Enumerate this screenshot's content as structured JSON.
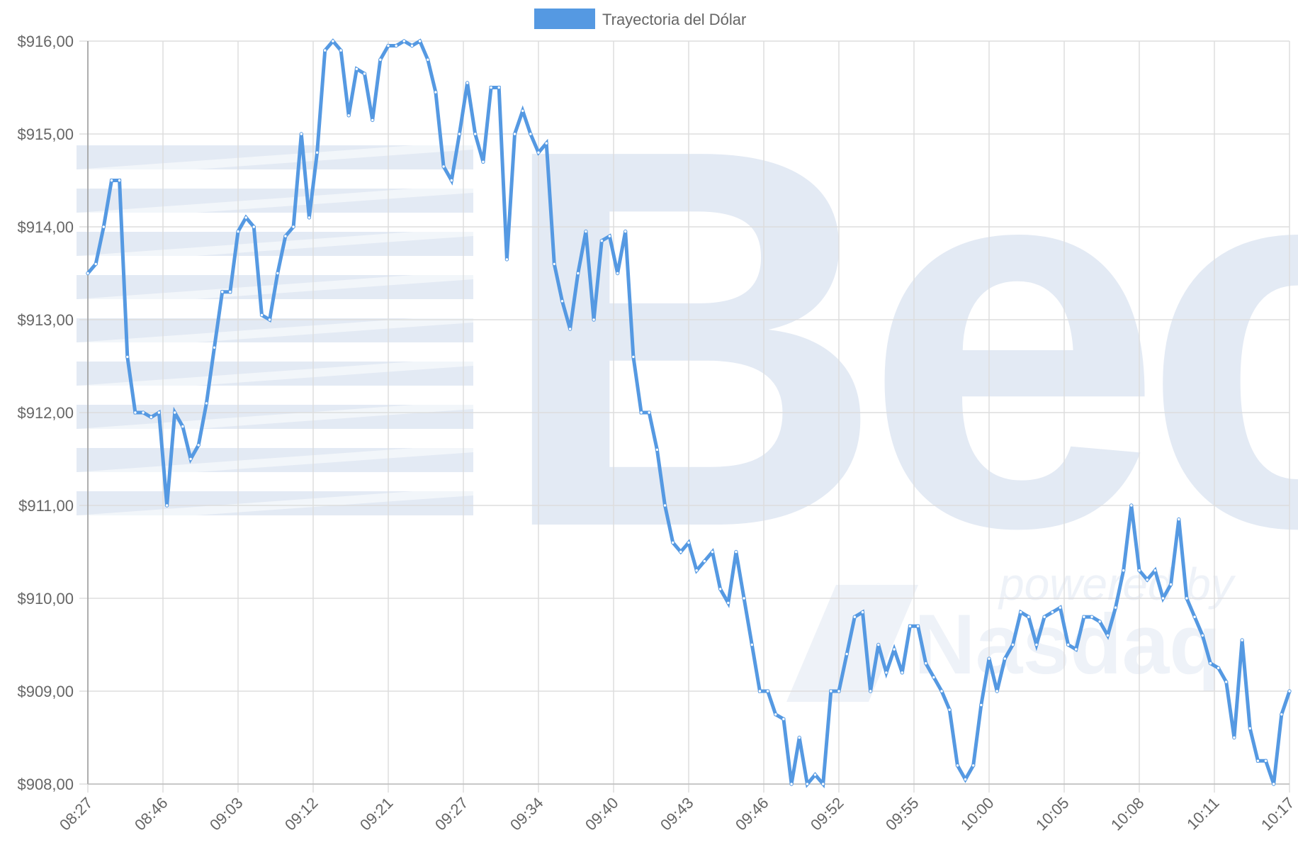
{
  "legend": {
    "label": "Trayectoria del Dólar",
    "color": "#5599e2"
  },
  "watermark": {
    "brand": "Bec",
    "tagline": "powered by",
    "partner": "Nasdaq",
    "color": "#e3eaf4"
  },
  "chart_data": {
    "type": "line",
    "title": "",
    "xlabel": "",
    "ylabel": "",
    "ylim": [
      908,
      916
    ],
    "y_ticks": [
      "$908,00",
      "$909,00",
      "$910,00",
      "$911,00",
      "$912,00",
      "$913,00",
      "$914,00",
      "$915,00",
      "$916,00"
    ],
    "x_tick_labels": [
      "08:27",
      "08:46",
      "09:03",
      "09:12",
      "09:21",
      "09:27",
      "09:34",
      "09:40",
      "09:43",
      "09:46",
      "09:52",
      "09:55",
      "10:00",
      "10:05",
      "10:08",
      "10:11",
      "10:17"
    ],
    "grid": true,
    "legend_position": "top-center",
    "series": [
      {
        "name": "Trayectoria del Dólar",
        "color": "#5599e2",
        "values": [
          913.5,
          913.6,
          914.0,
          914.5,
          914.5,
          912.6,
          912.0,
          912.0,
          911.95,
          912.0,
          911.0,
          912.0,
          911.85,
          911.5,
          911.65,
          912.1,
          912.7,
          913.3,
          913.3,
          913.95,
          914.1,
          914.0,
          913.05,
          913.0,
          913.5,
          913.9,
          914.0,
          915.0,
          914.1,
          914.8,
          915.9,
          916.0,
          915.9,
          915.2,
          915.7,
          915.65,
          915.15,
          915.8,
          915.95,
          915.95,
          916.0,
          915.95,
          916.0,
          915.8,
          915.45,
          914.65,
          914.5,
          915.0,
          915.55,
          915.0,
          914.7,
          915.5,
          915.5,
          913.65,
          915.0,
          915.25,
          915.0,
          914.8,
          914.9,
          913.6,
          913.2,
          912.9,
          913.5,
          913.95,
          913.0,
          913.85,
          913.9,
          913.5,
          913.95,
          912.6,
          912.0,
          912.0,
          911.6,
          911.0,
          910.6,
          910.5,
          910.6,
          910.3,
          910.4,
          910.5,
          910.1,
          909.95,
          910.5,
          910.0,
          909.5,
          909.0,
          909.0,
          908.75,
          908.7,
          908.0,
          908.5,
          908.0,
          908.1,
          908.0,
          909.0,
          909.0,
          909.4,
          909.8,
          909.85,
          909.0,
          909.5,
          909.2,
          909.45,
          909.2,
          909.7,
          909.7,
          909.3,
          909.15,
          909.0,
          908.8,
          908.2,
          908.05,
          908.2,
          908.85,
          909.35,
          909.0,
          909.35,
          909.5,
          909.85,
          909.8,
          909.5,
          909.8,
          909.85,
          909.9,
          909.5,
          909.45,
          909.8,
          909.8,
          909.75,
          909.6,
          909.9,
          910.3,
          911.0,
          910.3,
          910.2,
          910.3,
          910.0,
          910.15,
          910.85,
          910.0,
          909.8,
          909.6,
          909.3,
          909.25,
          909.1,
          908.5,
          909.55,
          908.6,
          908.25,
          908.25,
          908.0,
          908.75,
          909.0
        ]
      }
    ]
  }
}
